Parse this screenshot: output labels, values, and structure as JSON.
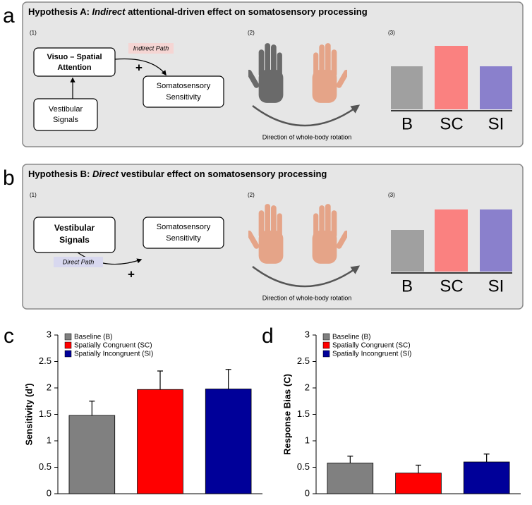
{
  "panels": [
    {
      "letter": "a",
      "title": {
        "lead": "Hypothesis A: ",
        "key": "Indirect",
        "rest": " attentional-driven effect on somatosensory processing"
      },
      "steps": [
        "(1)",
        "(2)",
        "(3)"
      ],
      "boxes": [
        [
          "Visuo – Spatial",
          "Attention"
        ],
        [
          "Vestibular",
          "Signals"
        ],
        [
          "Somatosensory",
          "Sensitivity"
        ]
      ],
      "path_label": "Indirect Path",
      "plus": "+",
      "rotation_caption": "Direction of whole-body rotation",
      "conditions": [
        "B",
        "SC",
        "SI"
      ]
    },
    {
      "letter": "b",
      "title": {
        "lead": "Hypothesis B: ",
        "key": "Direct",
        "rest": " vestibular effect on somatosensory processing"
      },
      "steps": [
        "(1)",
        "(2)",
        "(3)"
      ],
      "boxes": [
        [
          "Vestibular",
          "Signals"
        ],
        [
          "Somatosensory",
          "Sensitivity"
        ]
      ],
      "path_label": "Direct Path",
      "plus": "+",
      "rotation_caption": "Direction of whole-body rotation",
      "conditions": [
        "B",
        "SC",
        "SI"
      ]
    }
  ],
  "chart_data": [
    {
      "type": "bar",
      "letter": "c",
      "y_label": "Sensitivity (d')",
      "ylim": [
        0,
        3
      ],
      "yticks": [
        0,
        0.5,
        1,
        1.5,
        2,
        2.5,
        3
      ],
      "series": [
        {
          "name": "Baseline (B)",
          "color": "#808080",
          "values": [
            1.48
          ],
          "errors": [
            0.27
          ]
        },
        {
          "name": "Spatially Congruent (SC)",
          "color": "#ff0000",
          "values": [
            1.97
          ],
          "errors": [
            0.35
          ]
        },
        {
          "name": "Spatially Incongruent (SI)",
          "color": "#000099",
          "values": [
            1.98
          ],
          "errors": [
            0.37
          ]
        }
      ]
    },
    {
      "type": "bar",
      "letter": "d",
      "y_label": "Response Bias (C)",
      "ylim": [
        0,
        3
      ],
      "yticks": [
        0,
        0.5,
        1,
        1.5,
        2,
        2.5,
        3
      ],
      "series": [
        {
          "name": "Baseline (B)",
          "color": "#808080",
          "values": [
            0.58
          ],
          "errors": [
            0.13
          ]
        },
        {
          "name": "Spatially Congruent (SC)",
          "color": "#ff0000",
          "values": [
            0.39
          ],
          "errors": [
            0.15
          ]
        },
        {
          "name": "Spatially Incongruent (SI)",
          "color": "#000099",
          "values": [
            0.6
          ],
          "errors": [
            0.15
          ]
        }
      ]
    }
  ]
}
